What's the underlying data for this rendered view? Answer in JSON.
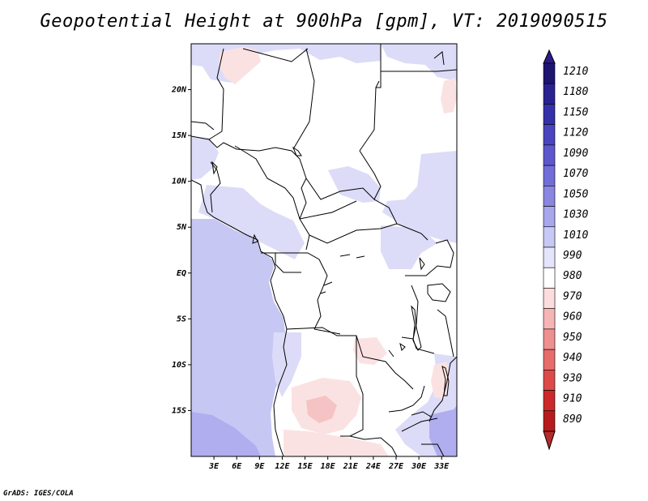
{
  "title": "Geopotential Height at 900hPa [gpm], VT: 2019090515",
  "credit": "GrADS: IGES/COLA",
  "map": {
    "lat_labels": [
      "20N",
      "15N",
      "10N",
      "5N",
      "EQ",
      "5S",
      "10S",
      "15S"
    ],
    "lon_labels": [
      "3E",
      "6E",
      "9E",
      "12E",
      "15E",
      "18E",
      "21E",
      "24E",
      "27E",
      "30E",
      "33E"
    ],
    "lat_range": [
      -20,
      25
    ],
    "lon_range": [
      0,
      35
    ],
    "lat_values": [
      20,
      15,
      10,
      5,
      0,
      -5,
      -10,
      -15
    ],
    "lon_values": [
      3,
      6,
      9,
      12,
      15,
      18,
      21,
      24,
      27,
      30,
      33
    ]
  },
  "colorbar": {
    "levels": [
      "1210",
      "1180",
      "1150",
      "1120",
      "1090",
      "1070",
      "1050",
      "1030",
      "1010",
      "990",
      "980",
      "970",
      "960",
      "950",
      "940",
      "930",
      "910",
      "890"
    ],
    "colors": [
      "#1d1570",
      "#2a2290",
      "#3531a8",
      "#4a44bf",
      "#5d57cc",
      "#726ed8",
      "#8a87e2",
      "#a8a6ec",
      "#c8c8f5",
      "#e4e4fb",
      "#ffffff",
      "#fcdcdc",
      "#f6b5b5",
      "#ee9090",
      "#e66c6c",
      "#dd4a4a",
      "#cc2a2a",
      "#b71c1c"
    ],
    "end_colors": {
      "top": "#2d1a8c",
      "bottom": "#b52a2a"
    }
  },
  "fields": {
    "sea_color": "#c7c7f4",
    "light_blue": "#dcdcf8",
    "medium_blue": "#c8c8f5",
    "deep_blue": "#b0aeef",
    "pink": "#fbe2e2",
    "medium_pink": "#f5c3c3"
  }
}
